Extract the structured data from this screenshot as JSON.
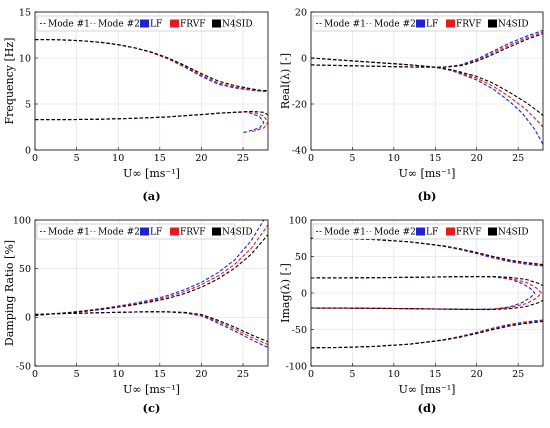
{
  "legend": {
    "mode1": "Mode #1",
    "mode2": "Mode #2",
    "lf": "LF",
    "frvf": "FRVF",
    "n4sid": "N4SID"
  },
  "colors": {
    "lf": "#1f1fdc",
    "frvf": "#e41a1c",
    "n4sid": "#000000"
  },
  "chart_data": [
    {
      "type": "line",
      "panel": "(a)",
      "ylabel": "Frequency [Hz]",
      "xlabel": "U∞ [ms⁻¹]",
      "xlim": [
        0,
        28
      ],
      "ylim": [
        0,
        15
      ],
      "xticks": [
        0,
        5,
        10,
        15,
        20,
        25
      ],
      "yticks": [
        0,
        5,
        10,
        15
      ],
      "grid": true,
      "series": [
        {
          "name": "LF",
          "mode": 1,
          "x": [
            0,
            2,
            4,
            6,
            8,
            10,
            12,
            14,
            16,
            18,
            20,
            22,
            24,
            26,
            27,
            28
          ],
          "y": [
            12.0,
            12.0,
            11.95,
            11.85,
            11.7,
            11.45,
            11.1,
            10.6,
            9.9,
            9.0,
            8.0,
            7.15,
            6.75,
            6.5,
            6.4,
            6.35
          ]
        },
        {
          "name": "FRVF",
          "mode": 1,
          "x": [
            0,
            2,
            4,
            6,
            8,
            10,
            12,
            14,
            16,
            18,
            20,
            22,
            24,
            26,
            27,
            28
          ],
          "y": [
            12.0,
            12.0,
            11.95,
            11.85,
            11.7,
            11.45,
            11.1,
            10.6,
            9.95,
            9.1,
            8.15,
            7.3,
            6.85,
            6.55,
            6.45,
            6.4
          ]
        },
        {
          "name": "N4SID",
          "mode": 1,
          "x": [
            0,
            2,
            4,
            6,
            8,
            10,
            12,
            14,
            16,
            18,
            20,
            22,
            24,
            26,
            27,
            28
          ],
          "y": [
            12.0,
            12.0,
            11.95,
            11.85,
            11.7,
            11.45,
            11.1,
            10.65,
            10.0,
            9.2,
            8.3,
            7.5,
            7.0,
            6.65,
            6.5,
            6.45
          ]
        },
        {
          "name": "LF",
          "mode": 2,
          "x": [
            0,
            4,
            8,
            12,
            16,
            20,
            22,
            24,
            25.5,
            27,
            27.5,
            27,
            25.5,
            25
          ],
          "y": [
            3.3,
            3.3,
            3.35,
            3.45,
            3.6,
            3.85,
            4.0,
            4.1,
            4.15,
            3.6,
            3.0,
            2.4,
            2.0,
            1.9
          ]
        },
        {
          "name": "FRVF",
          "mode": 2,
          "x": [
            0,
            4,
            8,
            12,
            16,
            20,
            22,
            24,
            26,
            27.5,
            28,
            27.5,
            26.5,
            26
          ],
          "y": [
            3.3,
            3.3,
            3.35,
            3.45,
            3.6,
            3.85,
            4.0,
            4.1,
            4.15,
            3.7,
            3.0,
            2.4,
            2.1,
            2.0
          ]
        },
        {
          "name": "N4SID",
          "mode": 2,
          "x": [
            0,
            4,
            8,
            12,
            16,
            20,
            22,
            24,
            26,
            27.5,
            28
          ],
          "y": [
            3.3,
            3.3,
            3.35,
            3.45,
            3.6,
            3.85,
            4.0,
            4.1,
            4.2,
            4.1,
            3.8
          ]
        }
      ]
    },
    {
      "type": "line",
      "panel": "(b)",
      "ylabel": "Real(λ) [-]",
      "xlabel": "U∞ [ms⁻¹]",
      "xlim": [
        0,
        28
      ],
      "ylim": [
        -40,
        20
      ],
      "xticks": [
        0,
        5,
        10,
        15,
        20,
        25
      ],
      "yticks": [
        -40,
        -20,
        0,
        20
      ],
      "grid": true,
      "series": [
        {
          "name": "LF",
          "mode": 1,
          "x": [
            0,
            4,
            8,
            12,
            16,
            18,
            20,
            22,
            24,
            26,
            28
          ],
          "y": [
            -3.0,
            -3.3,
            -3.6,
            -3.9,
            -4.0,
            -3.0,
            -0.5,
            3.0,
            6.5,
            9.5,
            12.0
          ]
        },
        {
          "name": "FRVF",
          "mode": 1,
          "x": [
            0,
            4,
            8,
            12,
            16,
            18,
            20,
            22,
            24,
            26,
            28
          ],
          "y": [
            -3.0,
            -3.3,
            -3.6,
            -3.9,
            -4.0,
            -3.2,
            -1.0,
            2.3,
            5.7,
            8.7,
            11.3
          ]
        },
        {
          "name": "N4SID",
          "mode": 1,
          "x": [
            0,
            4,
            8,
            12,
            16,
            18,
            20,
            22,
            24,
            26,
            28
          ],
          "y": [
            -3.0,
            -3.3,
            -3.6,
            -3.9,
            -4.0,
            -3.4,
            -1.5,
            1.6,
            4.9,
            8.0,
            10.6
          ]
        },
        {
          "name": "LF",
          "mode": 2,
          "x": [
            0,
            4,
            8,
            12,
            15,
            17,
            20,
            22,
            24,
            25.5,
            27,
            28
          ],
          "y": [
            0.0,
            -1.0,
            -2.0,
            -3.0,
            -4.0,
            -5.5,
            -9.5,
            -13.5,
            -19.0,
            -24.0,
            -31.0,
            -37.5
          ]
        },
        {
          "name": "FRVF",
          "mode": 2,
          "x": [
            0,
            4,
            8,
            12,
            15,
            17,
            20,
            22,
            24,
            26,
            27.5,
            28
          ],
          "y": [
            0.0,
            -1.0,
            -2.0,
            -3.0,
            -4.0,
            -5.3,
            -8.8,
            -12.3,
            -17.0,
            -22.5,
            -28.0,
            -30.0
          ]
        },
        {
          "name": "N4SID",
          "mode": 2,
          "x": [
            0,
            4,
            8,
            12,
            15,
            17,
            20,
            22,
            24,
            26,
            27.5,
            28
          ],
          "y": [
            0.0,
            -1.0,
            -2.0,
            -3.0,
            -4.0,
            -5.1,
            -8.0,
            -11.0,
            -15.0,
            -19.5,
            -23.5,
            -25.0
          ]
        }
      ]
    },
    {
      "type": "line",
      "panel": "(c)",
      "ylabel": "Damping Ratio [%]",
      "xlabel": "U∞ [ms⁻¹]",
      "xlim": [
        0,
        28
      ],
      "ylim": [
        -50,
        100
      ],
      "xticks": [
        0,
        5,
        10,
        15,
        20,
        25
      ],
      "yticks": [
        -50,
        0,
        50,
        100
      ],
      "grid": true,
      "series": [
        {
          "name": "LF",
          "mode": 1,
          "x": [
            0,
            2,
            4,
            6,
            8,
            10,
            12,
            14,
            16,
            18,
            20,
            21,
            22,
            24,
            26,
            28
          ],
          "y": [
            3.0,
            3.5,
            4.0,
            4.4,
            4.8,
            5.2,
            5.5,
            5.7,
            5.5,
            4.5,
            1.5,
            -2.0,
            -6.0,
            -14.0,
            -23.0,
            -31.0
          ]
        },
        {
          "name": "FRVF",
          "mode": 1,
          "x": [
            0,
            2,
            4,
            6,
            8,
            10,
            12,
            14,
            16,
            18,
            20,
            21,
            22,
            24,
            26,
            28
          ],
          "y": [
            3.0,
            3.5,
            4.0,
            4.4,
            4.8,
            5.2,
            5.5,
            5.7,
            5.6,
            4.8,
            2.2,
            -1.0,
            -4.5,
            -12.0,
            -20.5,
            -28.0
          ]
        },
        {
          "name": "N4SID",
          "mode": 1,
          "x": [
            0,
            2,
            4,
            6,
            8,
            10,
            12,
            14,
            16,
            18,
            20,
            21,
            22,
            24,
            26,
            28
          ],
          "y": [
            3.0,
            3.5,
            4.0,
            4.4,
            4.8,
            5.2,
            5.5,
            5.7,
            5.7,
            5.1,
            2.9,
            0.0,
            -3.0,
            -10.0,
            -18.0,
            -25.0
          ]
        },
        {
          "name": "LF",
          "mode": 2,
          "x": [
            0,
            2,
            4,
            6,
            8,
            10,
            12,
            14,
            16,
            18,
            20,
            22,
            24,
            26,
            27.5
          ],
          "y": [
            2.0,
            3.5,
            5.0,
            6.8,
            9.0,
            11.5,
            14.5,
            18.0,
            22.5,
            28.5,
            36.0,
            46.0,
            59.0,
            79.0,
            100.0
          ]
        },
        {
          "name": "FRVF",
          "mode": 2,
          "x": [
            0,
            2,
            4,
            6,
            8,
            10,
            12,
            14,
            16,
            18,
            20,
            22,
            24,
            26,
            28
          ],
          "y": [
            2.0,
            3.4,
            4.8,
            6.5,
            8.5,
            11.0,
            13.8,
            17.0,
            21.0,
            26.5,
            33.5,
            42.5,
            54.5,
            71.0,
            95.0
          ]
        },
        {
          "name": "N4SID",
          "mode": 2,
          "x": [
            0,
            2,
            4,
            6,
            8,
            10,
            12,
            14,
            16,
            18,
            20,
            22,
            24,
            26,
            28
          ],
          "y": [
            2.0,
            3.3,
            4.6,
            6.2,
            8.2,
            10.5,
            13.0,
            16.0,
            19.5,
            24.5,
            31.0,
            39.5,
            50.5,
            65.0,
            85.0
          ]
        }
      ]
    },
    {
      "type": "line",
      "panel": "(d)",
      "ylabel": "Imag(λ) [-]",
      "xlabel": "U∞ [ms⁻¹]",
      "xlim": [
        0,
        28
      ],
      "ylim": [
        -100,
        100
      ],
      "xticks": [
        0,
        5,
        10,
        15,
        20,
        25
      ],
      "yticks": [
        -100,
        -50,
        0,
        50,
        100
      ],
      "grid": true,
      "series": [
        {
          "name": "LF",
          "mode": 1,
          "x": [
            0,
            4,
            8,
            12,
            16,
            18,
            20,
            22,
            24,
            26,
            28
          ],
          "y": [
            75.0,
            74.5,
            73.0,
            70.0,
            64.0,
            59.5,
            54.0,
            48.0,
            43.0,
            39.5,
            37.0
          ]
        },
        {
          "name": "FRVF",
          "mode": 1,
          "x": [
            0,
            4,
            8,
            12,
            16,
            18,
            20,
            22,
            24,
            26,
            28
          ],
          "y": [
            75.0,
            74.5,
            73.0,
            70.0,
            64.2,
            60.0,
            54.8,
            49.0,
            44.0,
            40.5,
            38.0
          ]
        },
        {
          "name": "N4SID",
          "mode": 1,
          "x": [
            0,
            4,
            8,
            12,
            16,
            18,
            20,
            22,
            24,
            26,
            28
          ],
          "y": [
            75.0,
            74.5,
            73.0,
            70.0,
            64.5,
            60.5,
            55.5,
            50.0,
            45.0,
            41.5,
            39.0
          ]
        },
        {
          "name": "LF",
          "mode": 1,
          "x": [
            0,
            4,
            8,
            12,
            16,
            18,
            20,
            22,
            24,
            26,
            28
          ],
          "y": [
            -75.0,
            -74.5,
            -73.0,
            -70.0,
            -64.0,
            -59.5,
            -54.0,
            -48.0,
            -43.0,
            -39.5,
            -37.0
          ]
        },
        {
          "name": "FRVF",
          "mode": 1,
          "x": [
            0,
            4,
            8,
            12,
            16,
            18,
            20,
            22,
            24,
            26,
            28
          ],
          "y": [
            -75.0,
            -74.5,
            -73.0,
            -70.0,
            -64.2,
            -60.0,
            -54.8,
            -49.0,
            -44.0,
            -40.5,
            -38.0
          ]
        },
        {
          "name": "N4SID",
          "mode": 1,
          "x": [
            0,
            4,
            8,
            12,
            16,
            18,
            20,
            22,
            24,
            26,
            28
          ],
          "y": [
            -75.0,
            -74.5,
            -73.0,
            -70.0,
            -64.5,
            -60.5,
            -55.5,
            -50.0,
            -45.0,
            -41.5,
            -39.0
          ]
        },
        {
          "name": "LF",
          "mode": 2,
          "x": [
            0,
            4,
            8,
            12,
            16,
            20,
            22,
            24,
            25.5,
            26.5,
            27,
            26.5,
            25.5,
            24,
            22,
            20,
            16,
            12,
            8,
            4,
            0
          ],
          "y": [
            20.5,
            20.7,
            21.0,
            21.5,
            22.0,
            22.5,
            22.0,
            19.0,
            13.0,
            6.0,
            0.0,
            -6.0,
            -13.0,
            -19.0,
            -22.0,
            -22.5,
            -22.0,
            -21.5,
            -21.0,
            -20.7,
            -20.5
          ]
        },
        {
          "name": "FRVF",
          "mode": 2,
          "x": [
            0,
            4,
            8,
            12,
            16,
            20,
            22,
            24,
            26,
            27.2,
            27.8,
            27.2,
            26,
            24,
            22,
            20,
            16,
            12,
            8,
            4,
            0
          ],
          "y": [
            20.5,
            20.7,
            21.0,
            21.5,
            22.0,
            22.5,
            22.2,
            20.0,
            14.5,
            7.0,
            0.0,
            -7.0,
            -14.5,
            -20.0,
            -22.2,
            -22.5,
            -22.0,
            -21.5,
            -21.0,
            -20.7,
            -20.5
          ]
        },
        {
          "name": "N4SID",
          "mode": 2,
          "x": [
            0,
            4,
            8,
            12,
            16,
            20,
            22,
            24,
            26,
            27.5,
            28
          ],
          "y": [
            20.5,
            20.7,
            21.0,
            21.5,
            22.0,
            22.5,
            22.5,
            21.5,
            18.5,
            13.0,
            10.0
          ]
        },
        {
          "name": "N4SID",
          "mode": 2,
          "x": [
            0,
            4,
            8,
            12,
            16,
            20,
            22,
            24,
            26,
            27.5,
            28
          ],
          "y": [
            -20.5,
            -20.7,
            -21.0,
            -21.5,
            -22.0,
            -22.5,
            -22.5,
            -21.5,
            -18.5,
            -13.0,
            -10.0
          ]
        }
      ]
    }
  ]
}
